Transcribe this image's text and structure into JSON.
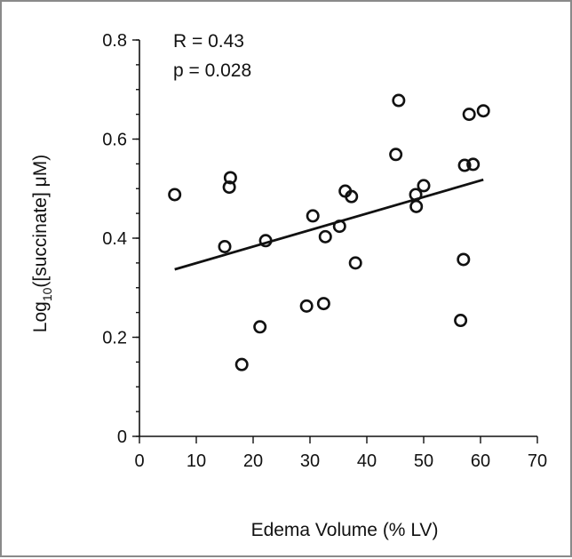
{
  "chart_data": {
    "type": "scatter",
    "xlabel": "Edema Volume (% LV)",
    "ylabel_main": "Log",
    "ylabel_sub": "10",
    "ylabel_rest": "([succinate] μM)",
    "xlim": [
      0,
      70
    ],
    "ylim": [
      0,
      0.8
    ],
    "x_ticks": [
      0,
      10,
      20,
      30,
      40,
      50,
      60,
      70
    ],
    "x_tick_labels": [
      "0",
      "10",
      "20",
      "30",
      "40",
      "50",
      "60",
      "70"
    ],
    "y_ticks": [
      0,
      0.2,
      0.4,
      0.6,
      0.8
    ],
    "y_tick_labels": [
      "0",
      "0.2",
      "0.4",
      "0.6",
      "0.8"
    ],
    "annotations": [
      "R = 0.43",
      "p = 0.028"
    ],
    "grid": false,
    "marker": "open-circle",
    "points": [
      {
        "x": 6.2,
        "y": 0.488
      },
      {
        "x": 15.0,
        "y": 0.383
      },
      {
        "x": 15.8,
        "y": 0.503
      },
      {
        "x": 16.0,
        "y": 0.522
      },
      {
        "x": 18.0,
        "y": 0.145
      },
      {
        "x": 21.2,
        "y": 0.221
      },
      {
        "x": 22.2,
        "y": 0.395
      },
      {
        "x": 29.4,
        "y": 0.263
      },
      {
        "x": 30.5,
        "y": 0.445
      },
      {
        "x": 32.4,
        "y": 0.268
      },
      {
        "x": 32.7,
        "y": 0.403
      },
      {
        "x": 35.2,
        "y": 0.424
      },
      {
        "x": 36.2,
        "y": 0.495
      },
      {
        "x": 37.3,
        "y": 0.484
      },
      {
        "x": 38.0,
        "y": 0.35
      },
      {
        "x": 45.1,
        "y": 0.569
      },
      {
        "x": 45.6,
        "y": 0.678
      },
      {
        "x": 48.6,
        "y": 0.488
      },
      {
        "x": 48.7,
        "y": 0.464
      },
      {
        "x": 50.0,
        "y": 0.506
      },
      {
        "x": 56.5,
        "y": 0.234
      },
      {
        "x": 57.0,
        "y": 0.357
      },
      {
        "x": 57.2,
        "y": 0.547
      },
      {
        "x": 58.0,
        "y": 0.65
      },
      {
        "x": 58.7,
        "y": 0.549
      },
      {
        "x": 60.5,
        "y": 0.657
      }
    ],
    "trendline": {
      "x": [
        6.2,
        60.5
      ],
      "y": [
        0.337,
        0.518
      ]
    }
  }
}
